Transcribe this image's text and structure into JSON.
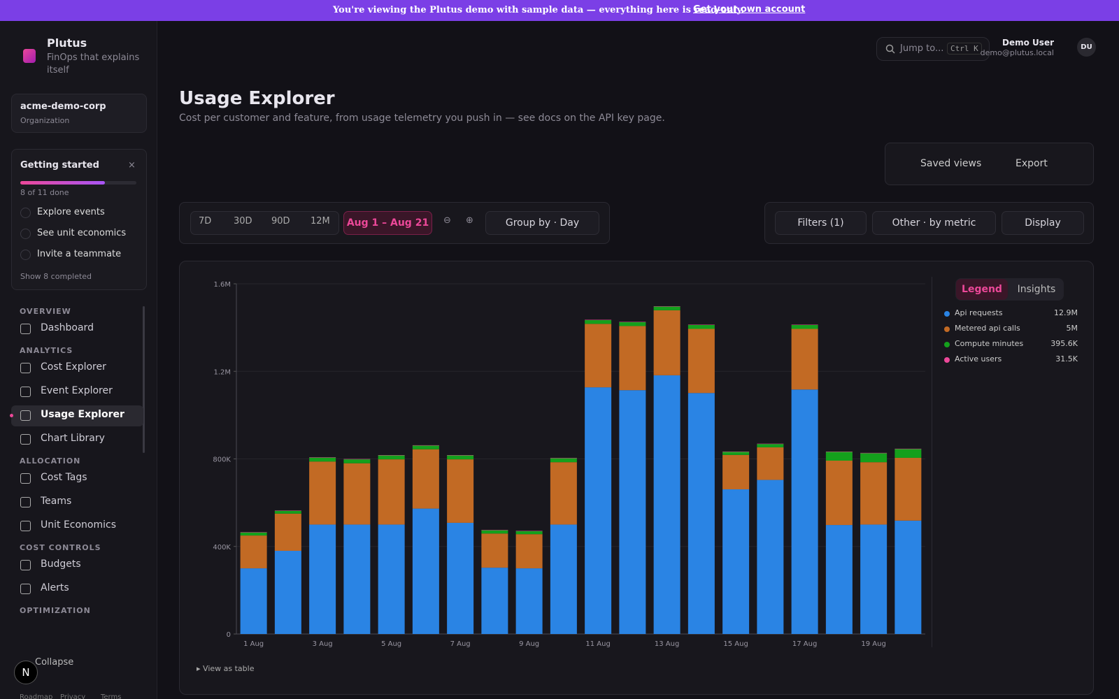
{
  "banner": {
    "text": "You're viewing the Plutus demo with sample data — everything here is read-only.",
    "link": "Get your own account"
  },
  "sidebar": {
    "brand": "Plutus",
    "tagline": "FinOps that explains itself",
    "org_name": "acme-demo-corp",
    "org_label": "Organization",
    "getting_started": {
      "title": "Getting started",
      "close": "×",
      "progress": "8 of 11 done",
      "items": [
        "Explore events",
        "See unit economics",
        "Invite a teammate"
      ],
      "show_completed": "Show 8 completed"
    },
    "sections": [
      {
        "heading": "OVERVIEW",
        "items": [
          "Dashboard"
        ]
      },
      {
        "heading": "ANALYTICS",
        "items": [
          "Cost Explorer",
          "Event Explorer",
          "Usage Explorer",
          "Chart Library"
        ]
      },
      {
        "heading": "ALLOCATION",
        "items": [
          "Cost Tags",
          "Teams",
          "Unit Economics"
        ]
      },
      {
        "heading": "COST CONTROLS",
        "items": [
          "Budgets",
          "Alerts"
        ]
      },
      {
        "heading": "OPTIMIZATION",
        "items": []
      }
    ],
    "active_item": "Usage Explorer",
    "collapse": "Collapse",
    "badge": "N",
    "footer_links": [
      "Roadmap",
      "Privacy",
      "Terms"
    ]
  },
  "header": {
    "search": "Jump to...",
    "shortcut": "Ctrl K",
    "user_name": "Demo User",
    "user_email": "demo@plutus.local",
    "initials": "DU"
  },
  "page": {
    "title": "Usage Explorer",
    "subtitle": "Cost per customer and feature, from usage telemetry you push in — see docs on the API key page.",
    "saved_views": "Saved views",
    "export": "Export",
    "ranges": [
      "7D",
      "30D",
      "90D",
      "12M"
    ],
    "active_range": "Aug 1 – Aug 21",
    "group_by": "Group by · Day",
    "filters": "Filters (1)",
    "other": "Other · by metric",
    "display": "Display",
    "tabs": [
      "Legend",
      "Insights"
    ],
    "view_as_table": "View as table"
  },
  "chart_data": {
    "type": "stacked_bar",
    "categories": [
      "1 Aug",
      null,
      "3 Aug",
      null,
      "5 Aug",
      null,
      "7 Aug",
      null,
      "9 Aug",
      null,
      "11 Aug",
      null,
      "13 Aug",
      null,
      "15 Aug",
      null,
      "17 Aug",
      null,
      "19 Aug",
      null
    ],
    "series": [
      {
        "name": "Api requests",
        "color": "#2a84e4",
        "total": "12.9M",
        "values": [
          300000,
          380000,
          500000,
          500000,
          500000,
          573000,
          508000,
          303000,
          300000,
          500000,
          1127000,
          1114000,
          1182000,
          1101000,
          661000,
          704000,
          1117000,
          498000,
          500000,
          518000
        ]
      },
      {
        "name": "Metered api calls",
        "color": "#c26a24",
        "total": "5M",
        "values": [
          150000,
          170000,
          288000,
          280000,
          298000,
          271000,
          290000,
          156000,
          156000,
          285000,
          290000,
          293000,
          297000,
          293000,
          157000,
          149000,
          277000,
          294000,
          285000,
          287000
        ]
      },
      {
        "name": "Compute minutes",
        "color": "#14a01c",
        "total": "395.6K",
        "values": [
          14000,
          13000,
          18000,
          18000,
          18000,
          17000,
          18000,
          15000,
          14000,
          18000,
          17000,
          18000,
          17000,
          18000,
          14000,
          15000,
          18000,
          40000,
          41000,
          40000
        ]
      },
      {
        "name": "Active users",
        "color": "#ec4899",
        "total": "31.5K",
        "values": [
          1575,
          1575,
          1575,
          1575,
          1575,
          1575,
          1575,
          1575,
          1575,
          1575,
          1575,
          1575,
          1575,
          1575,
          1575,
          1575,
          1575,
          1575,
          1575,
          1575
        ]
      }
    ],
    "ylim": [
      0,
      1600000
    ],
    "yticks": [
      0,
      {
        "value": 400000,
        "label": "400K"
      },
      {
        "value": 800000,
        "label": "800K"
      },
      {
        "value": 1200000,
        "label": "1.2M"
      },
      {
        "value": 1600000,
        "label": "1.6M"
      }
    ],
    "grid": true
  }
}
